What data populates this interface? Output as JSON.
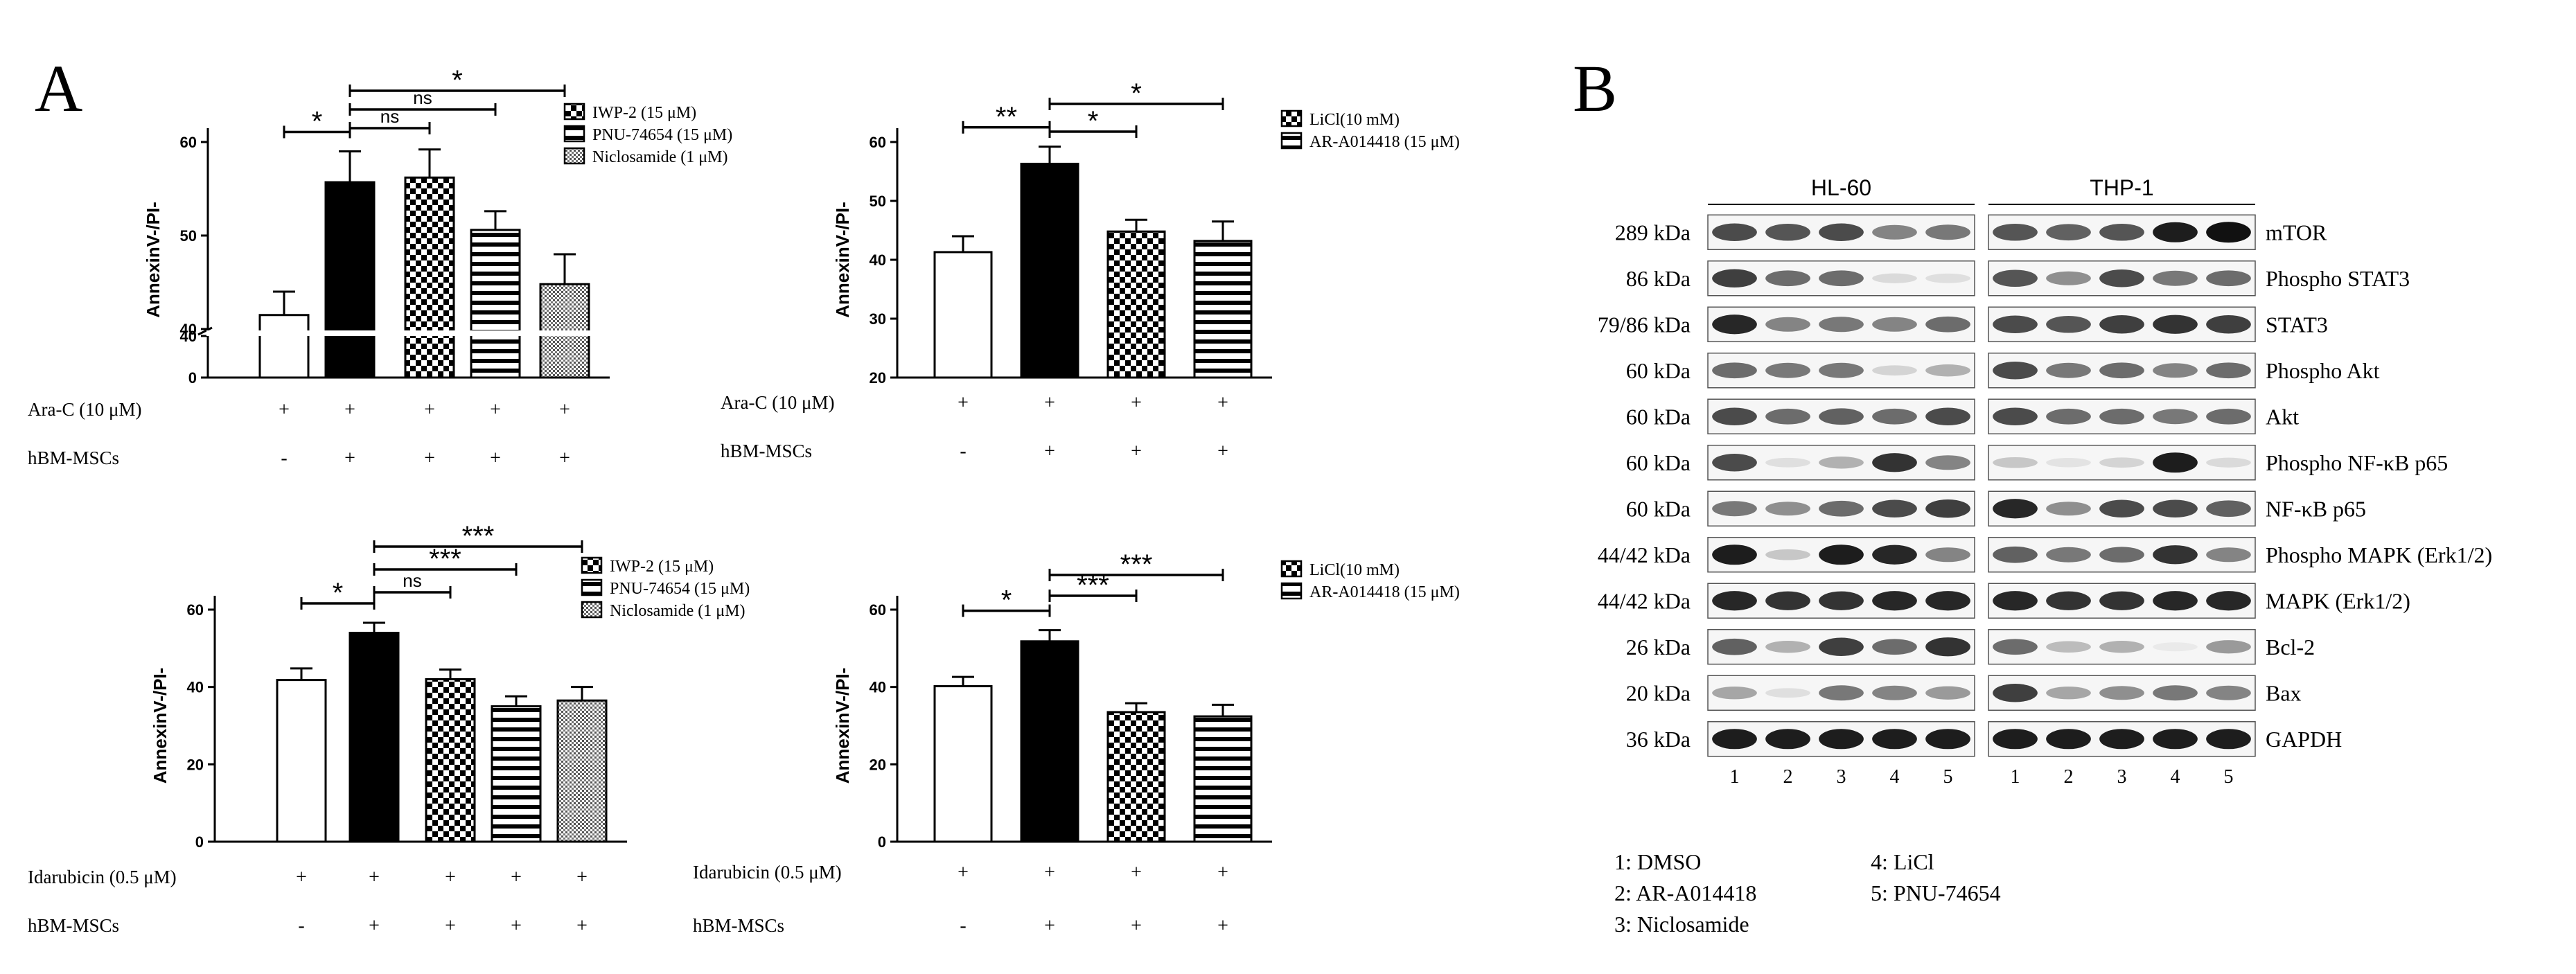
{
  "panel_a": {
    "letter": "A",
    "subplots": [
      {
        "id": "wnt-arac",
        "ylabel": "AnnexinV-/PI-",
        "yticks": [
          "40",
          "50",
          "60"
        ],
        "low_ticks": [
          "0",
          "40"
        ],
        "ylim": [
          40,
          60
        ],
        "bars": [
          {
            "value": 41.5,
            "err": 2.5,
            "pattern": "white"
          },
          {
            "value": 55.7,
            "err": 3.3,
            "pattern": "black"
          },
          {
            "value": 56.2,
            "err": 3.0,
            "pattern": "check"
          },
          {
            "value": 50.6,
            "err": 2.0,
            "pattern": "stripe"
          },
          {
            "value": 44.8,
            "err": 3.2,
            "pattern": "dots"
          }
        ],
        "legend": [
          "IWP-2 (15 μM)",
          "PNU-74654 (15 μM)",
          "Niclosamide (1 μM)"
        ],
        "legend_patterns": [
          "check",
          "stripe",
          "dots"
        ],
        "row1_label": "Ara-C  (10 μM)",
        "row1_marks": [
          "+",
          "+",
          "+",
          "+",
          "+"
        ],
        "row2_label": "hBM-MSCs",
        "row2_marks": [
          "-",
          "+",
          "+",
          "+",
          "+"
        ],
        "sig": [
          {
            "from": 0,
            "to": 1,
            "label": "*"
          },
          {
            "from": 1,
            "to": 2,
            "label": "ns"
          },
          {
            "from": 1,
            "to": 3,
            "label": "ns"
          },
          {
            "from": 1,
            "to": 4,
            "label": "*"
          }
        ]
      },
      {
        "id": "gsk-arac",
        "ylabel": "AnnexinV-/PI-",
        "yticks": [
          "20",
          "30",
          "40",
          "50",
          "60"
        ],
        "ylim": [
          20,
          60
        ],
        "bars": [
          {
            "value": 41.3,
            "err": 2.7,
            "pattern": "white"
          },
          {
            "value": 56.3,
            "err": 2.9,
            "pattern": "black"
          },
          {
            "value": 44.8,
            "err": 2.0,
            "pattern": "check"
          },
          {
            "value": 43.2,
            "err": 3.3,
            "pattern": "stripe"
          }
        ],
        "legend": [
          "LiCl(10 mM)",
          "AR-A014418 (15 μM)"
        ],
        "legend_patterns": [
          "check",
          "stripe"
        ],
        "row1_label": "Ara-C  (10 μM)",
        "row1_marks": [
          "+",
          "+",
          "+",
          "+"
        ],
        "row2_label": "hBM-MSCs",
        "row2_marks": [
          "-",
          "+",
          "+",
          "+"
        ],
        "sig": [
          {
            "from": 0,
            "to": 1,
            "label": "**"
          },
          {
            "from": 1,
            "to": 2,
            "label": "*"
          },
          {
            "from": 1,
            "to": 3,
            "label": "*"
          }
        ]
      },
      {
        "id": "wnt-ida",
        "ylabel": "AnnexinV-/PI-",
        "yticks": [
          "0",
          "20",
          "40",
          "60"
        ],
        "ylim": [
          0,
          60
        ],
        "bars": [
          {
            "value": 41.8,
            "err": 3.0,
            "pattern": "white"
          },
          {
            "value": 54.0,
            "err": 2.6,
            "pattern": "black"
          },
          {
            "value": 42.0,
            "err": 2.5,
            "pattern": "check"
          },
          {
            "value": 35.0,
            "err": 2.6,
            "pattern": "stripe"
          },
          {
            "value": 36.5,
            "err": 3.5,
            "pattern": "dots"
          }
        ],
        "legend": [
          "IWP-2 (15 μM)",
          "PNU-74654 (15 μM)",
          "Niclosamide (1 μM)"
        ],
        "legend_patterns": [
          "check",
          "stripe",
          "dots"
        ],
        "row1_label": "Idarubicin  (0.5 μM)",
        "row1_marks": [
          "+",
          "+",
          "+",
          "+",
          "+"
        ],
        "row2_label": "hBM-MSCs",
        "row2_marks": [
          "-",
          "+",
          "+",
          "+",
          "+"
        ],
        "sig": [
          {
            "from": 0,
            "to": 1,
            "label": "*"
          },
          {
            "from": 1,
            "to": 2,
            "label": "ns"
          },
          {
            "from": 1,
            "to": 3,
            "label": "***"
          },
          {
            "from": 1,
            "to": 4,
            "label": "***"
          }
        ]
      },
      {
        "id": "gsk-ida",
        "ylabel": "AnnexinV-/PI-",
        "yticks": [
          "0",
          "20",
          "40",
          "60"
        ],
        "ylim": [
          0,
          60
        ],
        "bars": [
          {
            "value": 40.2,
            "err": 2.4,
            "pattern": "white"
          },
          {
            "value": 51.8,
            "err": 2.9,
            "pattern": "black"
          },
          {
            "value": 33.5,
            "err": 2.3,
            "pattern": "check"
          },
          {
            "value": 32.4,
            "err": 3.0,
            "pattern": "stripe"
          }
        ],
        "legend": [
          "LiCl(10 mM)",
          "AR-A014418 (15 μM)"
        ],
        "legend_patterns": [
          "check",
          "stripe"
        ],
        "row1_label": "Idarubicin  (0.5 μM)",
        "row1_marks": [
          "+",
          "+",
          "+",
          "+"
        ],
        "row2_label": "hBM-MSCs",
        "row2_marks": [
          "-",
          "+",
          "+",
          "+"
        ],
        "sig": [
          {
            "from": 0,
            "to": 1,
            "label": "*"
          },
          {
            "from": 1,
            "to": 2,
            "label": "***"
          },
          {
            "from": 1,
            "to": 3,
            "label": "***"
          }
        ]
      }
    ]
  },
  "panel_b": {
    "letter": "B",
    "cell_lines": [
      "HL-60",
      "THP-1"
    ],
    "lane_numbers": [
      "1",
      "2",
      "3",
      "4",
      "5"
    ],
    "rows": [
      {
        "kda": "289 kDa",
        "protein": "mTOR",
        "hl60": [
          0.75,
          0.7,
          0.75,
          0.5,
          0.55
        ],
        "thp1": [
          0.7,
          0.65,
          0.7,
          0.95,
          1.0
        ]
      },
      {
        "kda": "86 kDa",
        "protein": "Phospho STAT3",
        "hl60": [
          0.8,
          0.6,
          0.6,
          0.12,
          0.1
        ],
        "thp1": [
          0.7,
          0.45,
          0.75,
          0.55,
          0.6
        ]
      },
      {
        "kda": "79/86 kDa",
        "protein": "STAT3",
        "hl60": [
          0.9,
          0.5,
          0.55,
          0.5,
          0.6
        ],
        "thp1": [
          0.75,
          0.7,
          0.8,
          0.85,
          0.8
        ]
      },
      {
        "kda": "60 kDa",
        "protein": "Phospho Akt",
        "hl60": [
          0.6,
          0.55,
          0.55,
          0.15,
          0.3
        ],
        "thp1": [
          0.75,
          0.55,
          0.6,
          0.5,
          0.6
        ]
      },
      {
        "kda": "60 kDa",
        "protein": "Akt",
        "hl60": [
          0.75,
          0.6,
          0.65,
          0.6,
          0.75
        ],
        "thp1": [
          0.75,
          0.6,
          0.6,
          0.55,
          0.6
        ]
      },
      {
        "kda": "60 kDa",
        "protein": "Phospho NF-κB p65",
        "hl60": [
          0.75,
          0.1,
          0.3,
          0.85,
          0.5
        ],
        "thp1": [
          0.2,
          0.08,
          0.15,
          0.95,
          0.12
        ]
      },
      {
        "kda": "60 kDa",
        "protein": "NF-κB p65",
        "hl60": [
          0.55,
          0.45,
          0.6,
          0.75,
          0.8
        ],
        "thp1": [
          0.9,
          0.45,
          0.75,
          0.75,
          0.65
        ]
      },
      {
        "kda": "44/42 kDa",
        "protein": "Phospho MAPK (Erk1/2)",
        "hl60": [
          0.95,
          0.2,
          0.95,
          0.9,
          0.5
        ],
        "thp1": [
          0.65,
          0.55,
          0.6,
          0.85,
          0.5
        ]
      },
      {
        "kda": "44/42 kDa",
        "protein": "MAPK (Erk1/2)",
        "hl60": [
          0.9,
          0.85,
          0.85,
          0.9,
          0.9
        ],
        "thp1": [
          0.9,
          0.85,
          0.85,
          0.9,
          0.9
        ]
      },
      {
        "kda": "26 kDa",
        "protein": "Bcl-2",
        "hl60": [
          0.65,
          0.3,
          0.8,
          0.6,
          0.85
        ],
        "thp1": [
          0.6,
          0.25,
          0.3,
          0.05,
          0.4
        ]
      },
      {
        "kda": "20 kDa",
        "protein": "Bax",
        "hl60": [
          0.35,
          0.1,
          0.55,
          0.5,
          0.4
        ],
        "thp1": [
          0.8,
          0.35,
          0.45,
          0.55,
          0.5
        ]
      },
      {
        "kda": "36 kDa",
        "protein": "GAPDH",
        "hl60": [
          0.95,
          0.95,
          0.95,
          0.95,
          0.95
        ],
        "thp1": [
          0.95,
          0.95,
          0.95,
          0.95,
          0.95
        ]
      }
    ],
    "key_left": [
      "1: DMSO",
      "2: AR-A014418",
      "3: Niclosamide"
    ],
    "key_right": [
      "4: LiCl",
      "5: PNU-74654"
    ]
  }
}
